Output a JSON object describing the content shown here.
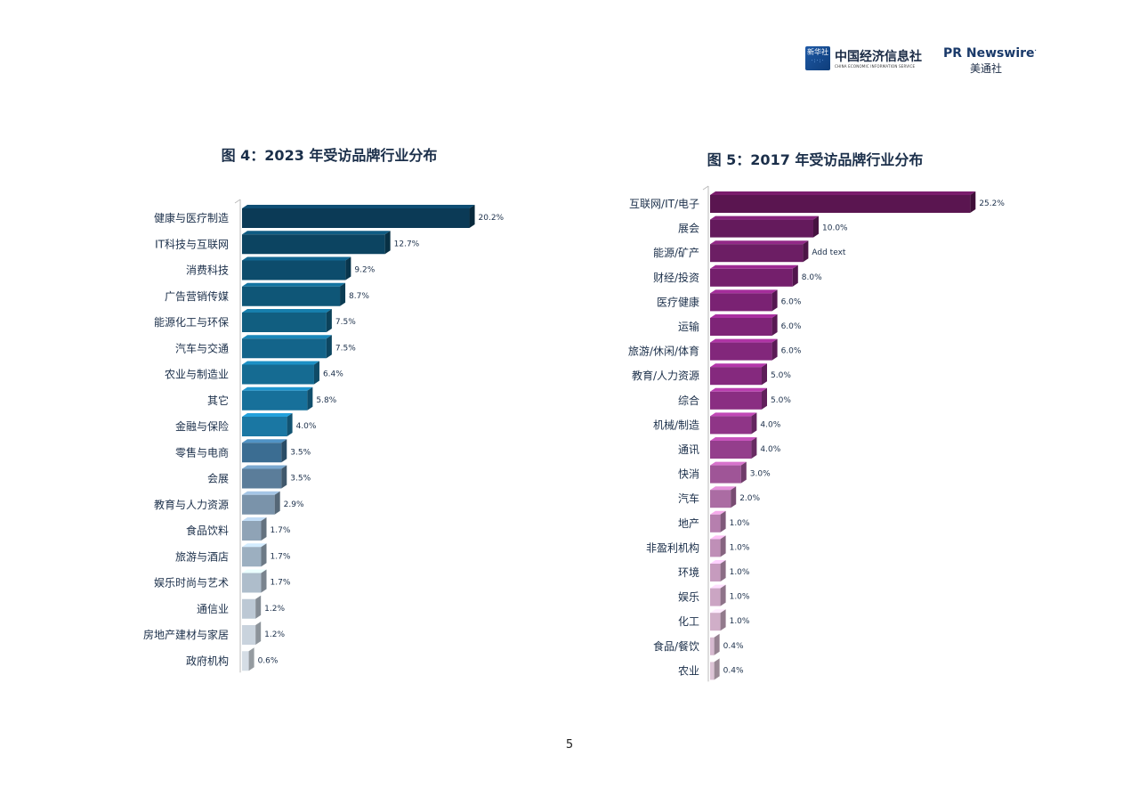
{
  "header": {
    "cei_logo_text": "新华社",
    "cei_name": "中国经济信息社",
    "cei_subtitle": "CHINA ECONOMIC INFORMATION SERVICE",
    "prn_name": "PR Newswire",
    "prn_cn": "美通社"
  },
  "page_number": "5",
  "chart_data": [
    {
      "type": "bar",
      "orientation": "horizontal",
      "title": "图 4：2023 年受访品牌行业分布",
      "value_suffix": "%",
      "categories": [
        "健康与医疗制造",
        "IT科技与互联网",
        "消费科技",
        "广告营销传媒",
        "能源化工与环保",
        "汽车与交通",
        "农业与制造业",
        "其它",
        "金融与保险",
        "零售与电商",
        "会展",
        "教育与人力资源",
        "食品饮料",
        "旅游与酒店",
        "娱乐时尚与艺术",
        "通信业",
        "房地产建材与家居",
        "政府机构"
      ],
      "values": [
        20.2,
        12.7,
        9.2,
        8.7,
        7.5,
        7.5,
        6.4,
        5.8,
        4.0,
        3.5,
        3.5,
        2.9,
        1.7,
        1.7,
        1.7,
        1.2,
        1.2,
        0.6
      ],
      "value_labels": [
        "20.2%",
        "12.7%",
        "9.2%",
        "8.7%",
        "7.5%",
        "7.5%",
        "6.4%",
        "5.8%",
        "4.0%",
        "3.5%",
        "3.5%",
        "2.9%",
        "1.7%",
        "1.7%",
        "1.7%",
        "1.2%",
        "1.2%",
        "0.6%"
      ],
      "colors": [
        "#0b3a56",
        "#0c4461",
        "#0d4c6c",
        "#0f5677",
        "#115e80",
        "#13648a",
        "#156b92",
        "#17709a",
        "#1a77a3",
        "#3b6d92",
        "#5b7d9a",
        "#7a93aa",
        "#8fa3b6",
        "#9cafc0",
        "#aebdcb",
        "#bcc8d4",
        "#c9d3dd",
        "#d5dde5"
      ]
    },
    {
      "type": "bar",
      "orientation": "horizontal",
      "title": "图 5：2017 年受访品牌行业分布",
      "value_suffix": "%",
      "categories": [
        "互联网/IT/电子",
        "展会",
        "能源/矿产",
        "财经/投资",
        "医疗健康",
        "运输",
        "旅游/休闲/体育",
        "教育/人力资源",
        "综合",
        "机械/制造",
        "通讯",
        "快消",
        "汽车",
        "地产",
        "非盈利机构",
        "环境",
        "娱乐",
        "化工",
        "食品/餐饮",
        "农业"
      ],
      "values": [
        25.2,
        10.0,
        null,
        8.0,
        6.0,
        6.0,
        6.0,
        5.0,
        5.0,
        4.0,
        4.0,
        3.0,
        2.0,
        1.0,
        1.0,
        1.0,
        1.0,
        1.0,
        0.4,
        0.4
      ],
      "value_labels": [
        "25.2%",
        "10.0%",
        "Add text",
        "8.0%",
        "6.0%",
        "6.0%",
        "6.0%",
        "5.0%",
        "5.0%",
        "4.0%",
        "4.0%",
        "3.0%",
        "2.0%",
        "1.0%",
        "1.0%",
        "1.0%",
        "1.0%",
        "1.0%",
        "0.4%",
        "0.4%"
      ],
      "colors": [
        "#5a1550",
        "#641a5c",
        "#6c1e64",
        "#741f6c",
        "#7a2273",
        "#7e2477",
        "#82277b",
        "#85297e",
        "#8a2e82",
        "#8f3587",
        "#943e8c",
        "#9f5597",
        "#ab6ca3",
        "#b67fae",
        "#bf8fb7",
        "#c69bbe",
        "#cba5c3",
        "#d0aec8",
        "#d6b9cf",
        "#dcc3d5"
      ]
    }
  ]
}
